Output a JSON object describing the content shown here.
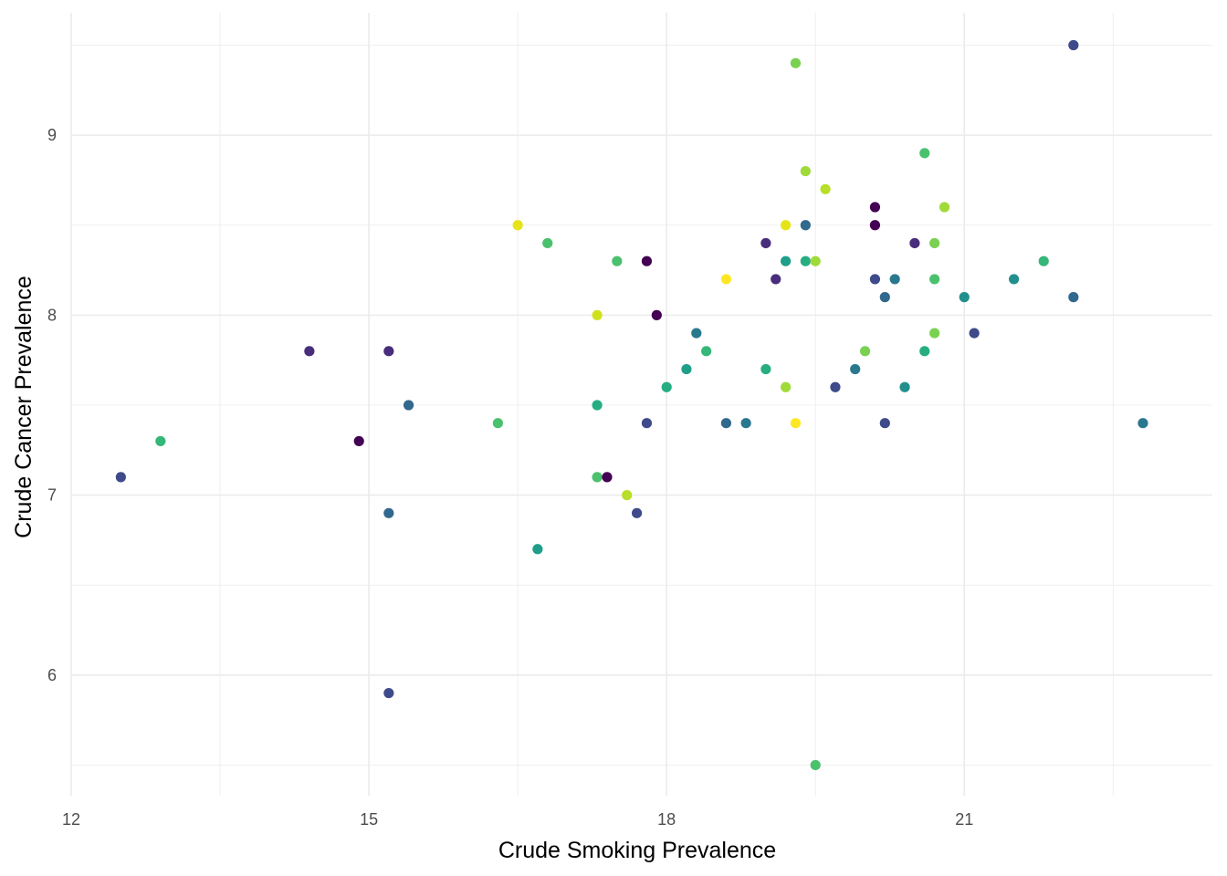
{
  "chart_data": {
    "type": "scatter",
    "title": "",
    "xlabel": "Crude Smoking Prevalence",
    "ylabel": "Crude Cancer Prevalence",
    "xlim": [
      12,
      23.5
    ],
    "ylim": [
      5.33,
      9.68
    ],
    "x_ticks": [
      "12",
      "15",
      "18",
      "21"
    ],
    "y_ticks": [
      "6",
      "7",
      "8",
      "9"
    ],
    "grid": true,
    "legend": "none",
    "palette": "viridis",
    "points": [
      {
        "x": 12.5,
        "y": 7.1,
        "color": "#3e4a89"
      },
      {
        "x": 12.9,
        "y": 7.3,
        "color": "#35b779"
      },
      {
        "x": 14.4,
        "y": 7.8,
        "color": "#472d7b"
      },
      {
        "x": 14.9,
        "y": 7.3,
        "color": "#440154"
      },
      {
        "x": 15.2,
        "y": 7.8,
        "color": "#472d7b"
      },
      {
        "x": 15.2,
        "y": 6.9,
        "color": "#31688e"
      },
      {
        "x": 15.2,
        "y": 5.9,
        "color": "#3e4a89"
      },
      {
        "x": 15.4,
        "y": 7.5,
        "color": "#31688e"
      },
      {
        "x": 16.3,
        "y": 7.4,
        "color": "#4ac16d"
      },
      {
        "x": 16.5,
        "y": 8.5,
        "color": "#e6e419"
      },
      {
        "x": 16.7,
        "y": 6.7,
        "color": "#1f9e89"
      },
      {
        "x": 16.8,
        "y": 8.4,
        "color": "#4ac16d"
      },
      {
        "x": 17.3,
        "y": 8.0,
        "color": "#d0e11c"
      },
      {
        "x": 17.3,
        "y": 7.5,
        "color": "#26ad81"
      },
      {
        "x": 17.3,
        "y": 7.1,
        "color": "#4ac16d"
      },
      {
        "x": 17.4,
        "y": 7.1,
        "color": "#440154"
      },
      {
        "x": 17.5,
        "y": 8.3,
        "color": "#4ac16d"
      },
      {
        "x": 17.6,
        "y": 7.0,
        "color": "#b8de29"
      },
      {
        "x": 17.7,
        "y": 6.9,
        "color": "#3e4a89"
      },
      {
        "x": 17.8,
        "y": 8.3,
        "color": "#440154"
      },
      {
        "x": 17.8,
        "y": 7.4,
        "color": "#3e4a89"
      },
      {
        "x": 17.9,
        "y": 8.0,
        "color": "#440154"
      },
      {
        "x": 18.0,
        "y": 7.6,
        "color": "#26ad81"
      },
      {
        "x": 18.2,
        "y": 7.7,
        "color": "#1f9e89"
      },
      {
        "x": 18.3,
        "y": 7.9,
        "color": "#2a788e"
      },
      {
        "x": 18.4,
        "y": 7.8,
        "color": "#35b779"
      },
      {
        "x": 18.6,
        "y": 8.2,
        "color": "#fde725"
      },
      {
        "x": 18.6,
        "y": 7.4,
        "color": "#31688e"
      },
      {
        "x": 18.8,
        "y": 7.4,
        "color": "#2a788e"
      },
      {
        "x": 19.0,
        "y": 8.4,
        "color": "#472d7b"
      },
      {
        "x": 19.0,
        "y": 7.7,
        "color": "#26ad81"
      },
      {
        "x": 19.1,
        "y": 8.2,
        "color": "#472d7b"
      },
      {
        "x": 19.2,
        "y": 8.5,
        "color": "#e6e419"
      },
      {
        "x": 19.2,
        "y": 8.3,
        "color": "#1f9e89"
      },
      {
        "x": 19.2,
        "y": 7.6,
        "color": "#a0da39"
      },
      {
        "x": 19.3,
        "y": 9.4,
        "color": "#7ad151"
      },
      {
        "x": 19.3,
        "y": 7.4,
        "color": "#fde725"
      },
      {
        "x": 19.4,
        "y": 8.8,
        "color": "#a0da39"
      },
      {
        "x": 19.4,
        "y": 8.5,
        "color": "#31688e"
      },
      {
        "x": 19.4,
        "y": 8.3,
        "color": "#26ad81"
      },
      {
        "x": 19.5,
        "y": 8.3,
        "color": "#a0da39"
      },
      {
        "x": 19.5,
        "y": 5.5,
        "color": "#4ac16d"
      },
      {
        "x": 19.6,
        "y": 8.7,
        "color": "#b8de29"
      },
      {
        "x": 19.7,
        "y": 7.6,
        "color": "#3e4a89"
      },
      {
        "x": 19.9,
        "y": 7.7,
        "color": "#2a788e"
      },
      {
        "x": 20.0,
        "y": 7.8,
        "color": "#7ad151"
      },
      {
        "x": 20.1,
        "y": 8.6,
        "color": "#440154"
      },
      {
        "x": 20.1,
        "y": 8.5,
        "color": "#440154"
      },
      {
        "x": 20.1,
        "y": 8.2,
        "color": "#3e4a89"
      },
      {
        "x": 20.2,
        "y": 8.1,
        "color": "#31688e"
      },
      {
        "x": 20.2,
        "y": 7.4,
        "color": "#3e4a89"
      },
      {
        "x": 20.3,
        "y": 8.2,
        "color": "#2a788e"
      },
      {
        "x": 20.4,
        "y": 7.6,
        "color": "#21908d"
      },
      {
        "x": 20.5,
        "y": 8.4,
        "color": "#472d7b"
      },
      {
        "x": 20.6,
        "y": 8.9,
        "color": "#4ac16d"
      },
      {
        "x": 20.6,
        "y": 7.8,
        "color": "#26ad81"
      },
      {
        "x": 20.7,
        "y": 8.4,
        "color": "#7ad151"
      },
      {
        "x": 20.7,
        "y": 8.2,
        "color": "#4ac16d"
      },
      {
        "x": 20.7,
        "y": 7.9,
        "color": "#7ad151"
      },
      {
        "x": 20.8,
        "y": 8.6,
        "color": "#a0da39"
      },
      {
        "x": 21.0,
        "y": 8.1,
        "color": "#21908d"
      },
      {
        "x": 21.1,
        "y": 7.9,
        "color": "#3e4a89"
      },
      {
        "x": 21.5,
        "y": 8.2,
        "color": "#21908d"
      },
      {
        "x": 21.8,
        "y": 8.3,
        "color": "#35b779"
      },
      {
        "x": 22.1,
        "y": 9.5,
        "color": "#3e4a89"
      },
      {
        "x": 22.1,
        "y": 8.1,
        "color": "#31688e"
      },
      {
        "x": 22.8,
        "y": 7.4,
        "color": "#2a788e"
      }
    ]
  }
}
